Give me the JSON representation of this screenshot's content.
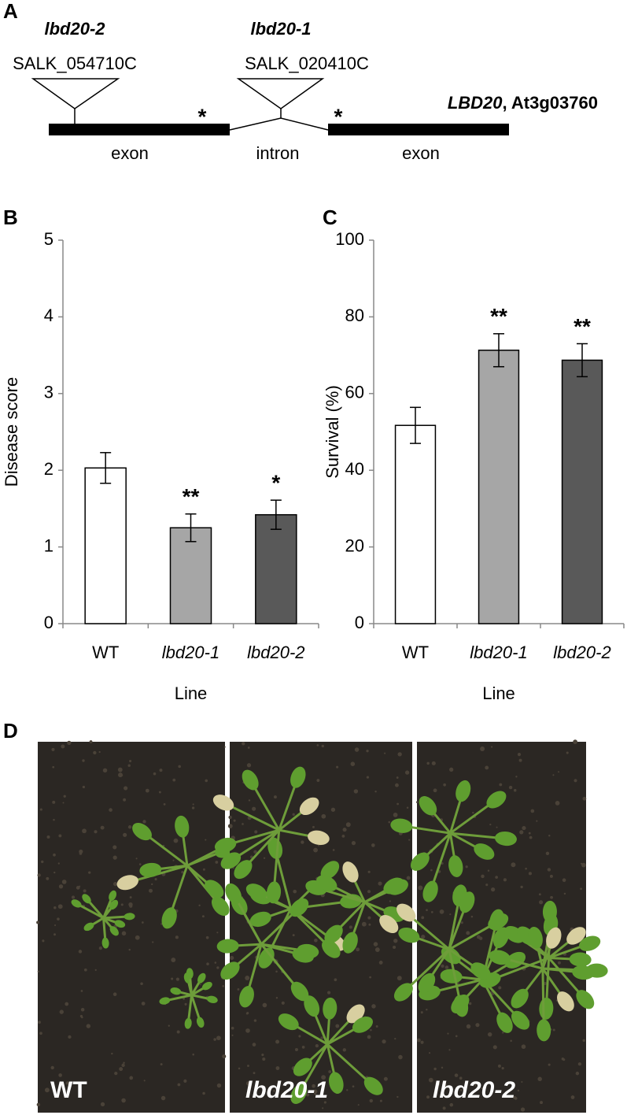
{
  "panel_labels": [
    "A",
    "B",
    "C",
    "D"
  ],
  "gene_diagram": {
    "insertions": [
      {
        "allele": "lbd20-2",
        "line": "SALK_054710C"
      },
      {
        "allele": "lbd20-1",
        "line": "SALK_020410C"
      }
    ],
    "gene": "LBD20",
    "locus": ", At3g03760",
    "markers": [
      "*",
      "*"
    ],
    "segments": [
      "exon",
      "intron",
      "exon"
    ]
  },
  "chart_data": [
    {
      "type": "bar",
      "ylabel": "Disease score",
      "xlabel": "Line",
      "categories": [
        "WT",
        "lbd20-1",
        "lbd20-2"
      ],
      "values": [
        2.03,
        1.25,
        1.42
      ],
      "errors": [
        0.2,
        0.18,
        0.19
      ],
      "significance": [
        null,
        "**",
        "*"
      ],
      "colors": [
        "#ffffff",
        "#a6a6a6",
        "#595959"
      ],
      "ylim": [
        0,
        5
      ],
      "yticks": [
        0,
        1,
        2,
        3,
        4,
        5
      ]
    },
    {
      "type": "bar",
      "ylabel": "Survival (%)",
      "xlabel": "Line",
      "categories": [
        "WT",
        "lbd20-1",
        "lbd20-2"
      ],
      "values": [
        51.7,
        71.3,
        68.7
      ],
      "errors": [
        4.7,
        4.3,
        4.3
      ],
      "significance": [
        null,
        "**",
        "**"
      ],
      "colors": [
        "#ffffff",
        "#a6a6a6",
        "#595959"
      ],
      "ylim": [
        0,
        100
      ],
      "yticks": [
        0,
        20,
        40,
        60,
        80,
        100
      ]
    }
  ],
  "photos": {
    "labels": [
      "WT",
      "lbd20-1",
      "lbd20-2"
    ]
  }
}
